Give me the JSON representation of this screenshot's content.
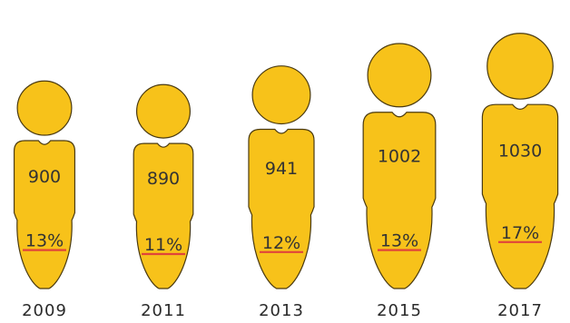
{
  "chart_data": {
    "type": "pictograph",
    "title": "",
    "categories": [
      "2009",
      "2011",
      "2013",
      "2015",
      "2017"
    ],
    "series": [
      {
        "name": "",
        "values": [
          900,
          890,
          941,
          1002,
          1030
        ]
      },
      {
        "name": "",
        "values": [
          "13%",
          "11%",
          "12%",
          "13%",
          "17%"
        ]
      }
    ],
    "colors": {
      "figure_fill": "#F7C21A",
      "marker_line": "#E0443A"
    },
    "icon": "person-figure-icon"
  }
}
